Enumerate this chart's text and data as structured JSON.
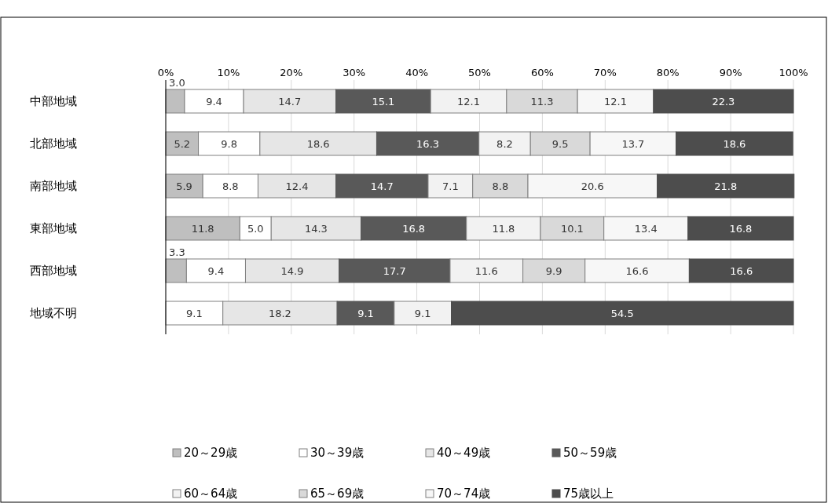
{
  "chart_data": {
    "type": "bar",
    "orientation": "horizontal",
    "stacked": true,
    "grid": "x",
    "legend": "bottom",
    "categories": [
      "中部地域",
      "北部地域",
      "南部地域",
      "東部地域",
      "西部地域",
      "地域不明"
    ],
    "xlim": [
      0,
      100
    ],
    "xticks": [
      {
        "value": 0,
        "label": "0%"
      },
      {
        "value": 10,
        "label": "10%"
      },
      {
        "value": 20,
        "label": "20%"
      },
      {
        "value": 30,
        "label": "30%"
      },
      {
        "value": 40,
        "label": "40%"
      },
      {
        "value": 50,
        "label": "50%"
      },
      {
        "value": 60,
        "label": "60%"
      },
      {
        "value": 70,
        "label": "70%"
      },
      {
        "value": 80,
        "label": "80%"
      },
      {
        "value": 90,
        "label": "90%"
      },
      {
        "value": 100,
        "label": "100%"
      }
    ],
    "series": [
      {
        "name": "20～29歳",
        "color": "#bfbfbf",
        "values": [
          3.0,
          5.2,
          5.9,
          11.8,
          3.3,
          null
        ],
        "value_labels": [
          "3.0",
          "5.2",
          "5.9",
          "11.8",
          "3.3",
          null
        ]
      },
      {
        "name": "30～39歳",
        "color": "#ffffff",
        "values": [
          9.4,
          9.8,
          8.8,
          5.0,
          9.4,
          9.1
        ],
        "value_labels": [
          "9.4",
          "9.8",
          "8.8",
          "5.0",
          "9.4",
          "9.1"
        ]
      },
      {
        "name": "40～49歳",
        "color": "#e6e6e6",
        "values": [
          14.7,
          18.6,
          12.4,
          14.3,
          14.9,
          18.2
        ],
        "value_labels": [
          "14.7",
          "18.6",
          "12.4",
          "14.3",
          "14.9",
          "18.2"
        ]
      },
      {
        "name": "50～59歳",
        "color": "#595959",
        "values": [
          15.1,
          16.3,
          14.7,
          16.8,
          17.7,
          9.1
        ],
        "value_labels": [
          "15.1",
          "16.3",
          "14.7",
          "16.8",
          "17.7",
          "9.1"
        ]
      },
      {
        "name": "60～64歳",
        "color": "#f2f2f2",
        "values": [
          12.1,
          8.2,
          7.1,
          11.8,
          11.6,
          9.1
        ],
        "value_labels": [
          "12.1",
          "8.2",
          "7.1",
          "11.8",
          "11.6",
          "9.1"
        ]
      },
      {
        "name": "65～69歳",
        "color": "#d9d9d9",
        "values": [
          11.3,
          9.5,
          8.8,
          10.1,
          9.9,
          null
        ],
        "value_labels": [
          "11.3",
          "9.5",
          "8.8",
          "10.1",
          "9.9",
          null
        ]
      },
      {
        "name": "70～74歳",
        "color": "#f7f7f7",
        "values": [
          12.1,
          13.7,
          20.6,
          13.4,
          16.6,
          null
        ],
        "value_labels": [
          "12.1",
          "13.7",
          "20.6",
          "13.4",
          "16.6",
          null
        ]
      },
      {
        "name": "75歳以上",
        "color": "#4d4d4d",
        "values": [
          22.3,
          18.6,
          21.8,
          16.8,
          16.6,
          54.5
        ],
        "value_labels": [
          "22.3",
          "18.6",
          "21.8",
          "16.8",
          "16.6",
          "54.5"
        ]
      }
    ]
  }
}
